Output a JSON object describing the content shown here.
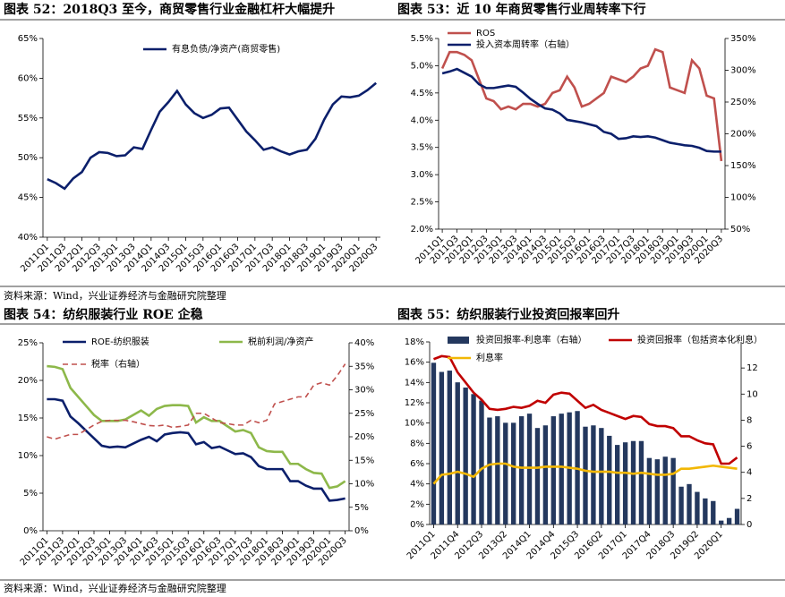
{
  "chart_data": [
    {
      "type": "line",
      "title": "图表 52：2018Q3 至今，商贸零售行业金融杠杆大幅提升",
      "source": "资料来源：Wind，兴业证券经济与金融研究院整理",
      "categories": [
        "2011Q1",
        null,
        "2011Q3",
        null,
        "2012Q1",
        null,
        "2012Q3",
        null,
        "2013Q1",
        null,
        "2013Q3",
        null,
        "2014Q1",
        null,
        "2014Q3",
        null,
        "2015Q1",
        null,
        "2015Q3",
        null,
        "2016Q1",
        null,
        "2016Q3",
        null,
        "2017Q1",
        null,
        "2017Q3",
        null,
        "2018Q1",
        null,
        "2018Q3",
        null,
        "2019Q1",
        null,
        "2019Q3",
        null,
        "2020Q1",
        null,
        "2020Q3"
      ],
      "ylim": [
        40,
        65
      ],
      "yticks": [
        {
          "value": 40,
          "label": "40%"
        },
        {
          "value": 45,
          "label": "45%"
        },
        {
          "value": 50,
          "label": "50%"
        },
        {
          "value": 55,
          "label": "55%"
        },
        {
          "value": 60,
          "label": "60%"
        },
        {
          "value": 65,
          "label": "65%"
        }
      ],
      "series": [
        {
          "name": "有息负债/净资产(商贸零售)",
          "color": "#0b1f6b",
          "values": [
            47.3,
            46.8,
            46.1,
            47.4,
            48.2,
            50,
            50.7,
            50.6,
            50.2,
            50.3,
            51.3,
            51.1,
            53.5,
            55.8,
            57,
            58.4,
            56.7,
            55.6,
            55,
            55.4,
            56.2,
            56.3,
            54.8,
            53.3,
            52.2,
            51,
            51.3,
            50.8,
            50.4,
            50.8,
            51,
            52.4,
            54.8,
            56.7,
            57.7,
            57.6,
            57.8,
            58.5,
            59.4
          ]
        }
      ]
    },
    {
      "type": "line",
      "title": "图表 53：近 10 年商贸零售行业周转率下行",
      "categories": [
        "2011Q1",
        null,
        "2011Q3",
        null,
        "2012Q1",
        null,
        "2012Q3",
        null,
        "2013Q1",
        null,
        "2013Q3",
        null,
        "2014Q1",
        null,
        "2014Q3",
        null,
        "2015Q1",
        null,
        "2015Q3",
        null,
        "2016Q1",
        null,
        "2016Q3",
        null,
        "2017Q1",
        null,
        "2017Q3",
        null,
        "2018Q1",
        null,
        "2018Q3",
        null,
        "2019Q1",
        null,
        "2019Q3",
        null,
        "2020Q1",
        null,
        "2020Q3"
      ],
      "ylim": [
        2.0,
        5.5
      ],
      "yticks": [
        {
          "value": 2.0,
          "label": "2.0%"
        },
        {
          "value": 2.5,
          "label": "2.5%"
        },
        {
          "value": 3.0,
          "label": "3.0%"
        },
        {
          "value": 3.5,
          "label": "3.5%"
        },
        {
          "value": 4.0,
          "label": "4.0%"
        },
        {
          "value": 4.5,
          "label": "4.5%"
        },
        {
          "value": 5.0,
          "label": "5.0%"
        },
        {
          "value": 5.5,
          "label": "5.5%"
        }
      ],
      "y2lim": [
        50,
        350
      ],
      "y2ticks": [
        {
          "value": 50,
          "label": "50%"
        },
        {
          "value": 100,
          "label": "100%"
        },
        {
          "value": 150,
          "label": "150%"
        },
        {
          "value": 200,
          "label": "200%"
        },
        {
          "value": 250,
          "label": "250%"
        },
        {
          "value": 300,
          "label": "300%"
        },
        {
          "value": 350,
          "label": "350%"
        }
      ],
      "series": [
        {
          "name": "ROS",
          "color": "#c0504d",
          "values": [
            4.95,
            5.25,
            5.25,
            5.2,
            5.1,
            4.75,
            4.4,
            4.35,
            4.2,
            4.25,
            4.2,
            4.3,
            4.3,
            4.25,
            4.3,
            4.5,
            4.55,
            4.8,
            4.6,
            4.25,
            4.3,
            4.4,
            4.5,
            4.8,
            4.75,
            4.7,
            4.8,
            4.95,
            5.0,
            5.3,
            5.25,
            4.6,
            4.55,
            4.5,
            5.1,
            4.95,
            4.45,
            4.4,
            3.25
          ]
        },
        {
          "name": "投入资本周转率（右轴）",
          "color": "#0b1f6b",
          "axis": "y2",
          "values": [
            295,
            298,
            302,
            296,
            290,
            278,
            272,
            272,
            274,
            276,
            274,
            265,
            255,
            247,
            240,
            238,
            232,
            222,
            220,
            218,
            215,
            212,
            203,
            200,
            192,
            193,
            196,
            195,
            196,
            194,
            190,
            186,
            184,
            182,
            181,
            178,
            173,
            172,
            172
          ]
        }
      ]
    },
    {
      "type": "line",
      "title": "图表 54：纺织服装行业 ROE 企稳",
      "source": "资料来源：Wind，兴业证券经济与金融研究院整理",
      "categories": [
        "2011Q1",
        null,
        "2011Q3",
        null,
        "2012Q1",
        null,
        "2012Q3",
        null,
        "2013Q1",
        null,
        "2013Q3",
        null,
        "2014Q1",
        null,
        "2014Q3",
        null,
        "2015Q1",
        null,
        "2015Q3",
        null,
        "2016Q1",
        null,
        "2016Q3",
        null,
        "2017Q1",
        null,
        "2017Q3",
        null,
        "2018Q1",
        null,
        "2018Q3",
        null,
        "2019Q1",
        null,
        "2019Q3",
        null,
        "2020Q1",
        null,
        "2020Q3"
      ],
      "ylim": [
        0,
        25
      ],
      "yticks": [
        {
          "value": 0,
          "label": "0%"
        },
        {
          "value": 5,
          "label": "5%"
        },
        {
          "value": 10,
          "label": "10%"
        },
        {
          "value": 15,
          "label": "15%"
        },
        {
          "value": 20,
          "label": "20%"
        },
        {
          "value": 25,
          "label": "25%"
        }
      ],
      "y2lim": [
        0,
        40
      ],
      "y2ticks": [
        {
          "value": 0,
          "label": "0%"
        },
        {
          "value": 5,
          "label": "5%"
        },
        {
          "value": 10,
          "label": "10%"
        },
        {
          "value": 15,
          "label": "15%"
        },
        {
          "value": 20,
          "label": "20%"
        },
        {
          "value": 25,
          "label": "25%"
        },
        {
          "value": 30,
          "label": "30%"
        },
        {
          "value": 35,
          "label": "35%"
        },
        {
          "value": 40,
          "label": "40%"
        }
      ],
      "series": [
        {
          "name": "ROE-纺织服装",
          "color": "#0b1f6b",
          "values": [
            17.5,
            17.5,
            17.3,
            15.2,
            14.3,
            13.3,
            12.3,
            11.3,
            11.1,
            11.2,
            11.1,
            11.6,
            12.1,
            12.5,
            11.9,
            12.8,
            13,
            13.1,
            13,
            11.5,
            11.8,
            11,
            11.2,
            10.7,
            10.2,
            10.3,
            9.8,
            8.6,
            8.2,
            8.2,
            8.2,
            6.6,
            6.6,
            6,
            5.6,
            5.6,
            4,
            4.1,
            4.3
          ]
        },
        {
          "name": "税前利润/净资产",
          "color": "#8db84a",
          "values": [
            21.9,
            21.8,
            21.5,
            19,
            17.8,
            16.6,
            15.4,
            14.6,
            14.6,
            14.6,
            14.8,
            15.4,
            16,
            15.3,
            16.2,
            16.6,
            16.7,
            16.7,
            16.6,
            14.4,
            15.1,
            14.6,
            14.6,
            13.9,
            13.2,
            13.4,
            13,
            11.1,
            10.6,
            10.5,
            10.5,
            8.9,
            8.9,
            8.2,
            7.7,
            7.6,
            5.7,
            5.9,
            6.6
          ]
        },
        {
          "name": "税率（右轴）",
          "color": "#c0504d",
          "axis": "y2",
          "dashed": true,
          "values": [
            20,
            19.5,
            20,
            20.5,
            20.5,
            21.5,
            22.5,
            23.3,
            23.5,
            23.5,
            23.5,
            23.2,
            22.8,
            22.4,
            22.3,
            22.5,
            22,
            22.2,
            22.5,
            25,
            25,
            24,
            23,
            22.8,
            22.5,
            22.5,
            23.5,
            23,
            23.5,
            27,
            27.5,
            28,
            28.5,
            28.5,
            31,
            31.5,
            31,
            33,
            35.5
          ]
        }
      ]
    },
    {
      "type": "combo",
      "title": "图表 55：纺织服装行业投资回报率回升",
      "categories": [
        "2011Q1",
        null,
        null,
        "2011Q4",
        null,
        null,
        "2012Q3",
        null,
        null,
        "2013Q2",
        null,
        null,
        "2014Q1",
        null,
        null,
        "2014Q4",
        null,
        null,
        "2015Q3",
        null,
        null,
        "2016Q2",
        null,
        null,
        "2017Q1",
        null,
        null,
        "2017Q4",
        null,
        null,
        "2018Q3",
        null,
        null,
        "2019Q2",
        null,
        null,
        "2020Q1",
        null,
        null
      ],
      "ylim": [
        0,
        18
      ],
      "yticks": [
        {
          "value": 0,
          "label": "0%"
        },
        {
          "value": 2,
          "label": "2%"
        },
        {
          "value": 4,
          "label": "4%"
        },
        {
          "value": 6,
          "label": "6%"
        },
        {
          "value": 8,
          "label": "8%"
        },
        {
          "value": 10,
          "label": "10%"
        },
        {
          "value": 12,
          "label": "12%"
        },
        {
          "value": 14,
          "label": "14%"
        },
        {
          "value": 16,
          "label": "16%"
        },
        {
          "value": 18,
          "label": "18%"
        }
      ],
      "y2lim": [
        0,
        14
      ],
      "y2ticks": [
        0,
        2,
        4,
        6,
        8,
        10,
        12
      ],
      "series": [
        {
          "name": "投资回报率-利息率（右轴）",
          "color": "#24385e",
          "kind": "bar",
          "axis": "y2",
          "values": [
            12.4,
            11.7,
            11.8,
            10.9,
            10.5,
            10.0,
            9.5,
            8.2,
            8.3,
            7.8,
            7.8,
            8.3,
            8.5,
            7.4,
            7.6,
            8.3,
            8.5,
            8.6,
            8.7,
            7.5,
            7.6,
            7.4,
            6.8,
            6.1,
            6.3,
            6.4,
            6.4,
            5.1,
            5.0,
            5.2,
            5.1,
            2.9,
            3.1,
            2.5,
            2.0,
            1.8,
            0.3,
            0.5,
            1.2
          ]
        },
        {
          "name": "投资回报率（包括资本化利息）",
          "color": "#c00000",
          "values": [
            16.3,
            16.6,
            16.5,
            15.0,
            14.0,
            13.0,
            12.3,
            11.4,
            11.3,
            11.4,
            11.6,
            11.5,
            11.7,
            12.2,
            12.0,
            12.8,
            13.0,
            12.9,
            12.2,
            11.5,
            11.8,
            11.3,
            11.0,
            10.7,
            10.4,
            10.7,
            10.6,
            9.9,
            9.7,
            9.7,
            9.5,
            8.7,
            8.7,
            8.3,
            8.0,
            7.9,
            6.0,
            6.0,
            6.6
          ]
        },
        {
          "name": "利息率",
          "color": "#f2b705",
          "values": [
            4.0,
            4.9,
            5.0,
            5.2,
            5.0,
            4.7,
            5.5,
            5.9,
            6.0,
            6.0,
            5.7,
            5.6,
            5.6,
            5.6,
            5.7,
            5.7,
            5.7,
            5.6,
            5.5,
            5.3,
            5.2,
            5.2,
            5.2,
            5.1,
            5.1,
            5.0,
            5.1,
            5.0,
            4.9,
            4.9,
            5.0,
            5.5,
            5.5,
            5.6,
            5.7,
            5.8,
            5.7,
            5.6,
            5.5
          ]
        }
      ]
    }
  ]
}
